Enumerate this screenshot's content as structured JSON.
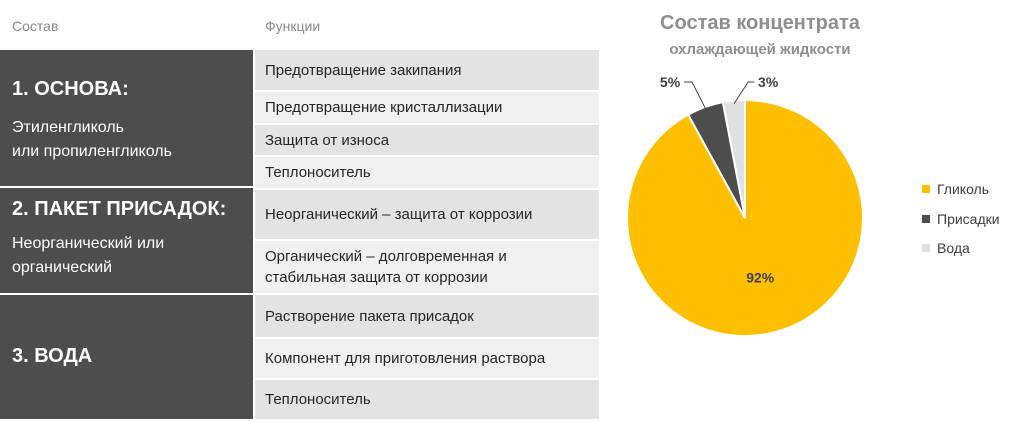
{
  "headers": {
    "composition": "Состав",
    "functions": "Функции"
  },
  "groups": [
    {
      "title": "1. ОСНОВА:",
      "desc_line1": "Этиленгликоль",
      "desc_line2": "или пропиленгликоль"
    },
    {
      "title": "2. ПАКЕТ ПРИСАДОК:",
      "desc_line1": "Неорганический или",
      "desc_line2": "органический"
    },
    {
      "title": "3. ВОДА"
    }
  ],
  "functions": [
    {
      "line1": "Предотвращение закипания"
    },
    {
      "line1": "Предотвращение кристаллизации"
    },
    {
      "line1": "Защита от износа"
    },
    {
      "line1": "Теплоноситель"
    },
    {
      "line1": "Неорганический – защита от коррозии"
    },
    {
      "line1": "Органический – долговременная и",
      "line2": "стабильная защита от коррозии"
    },
    {
      "line1": "Растворение пакета присадок"
    },
    {
      "line1": "Компонент для приготовления раствора"
    },
    {
      "line1": "Теплоноситель"
    }
  ],
  "chart_data": {
    "type": "pie",
    "title": "Состав концентрата",
    "subtitle": "охлаждающей жидкости",
    "legend_position": "right",
    "categories": [
      "Гликоль",
      "Присадки",
      "Вода"
    ],
    "values": [
      92,
      5,
      3
    ],
    "labels": [
      "92%",
      "5%",
      "3%"
    ],
    "colors": [
      "#fdbf00",
      "#4d4d4d",
      "#e0e0e0"
    ]
  }
}
